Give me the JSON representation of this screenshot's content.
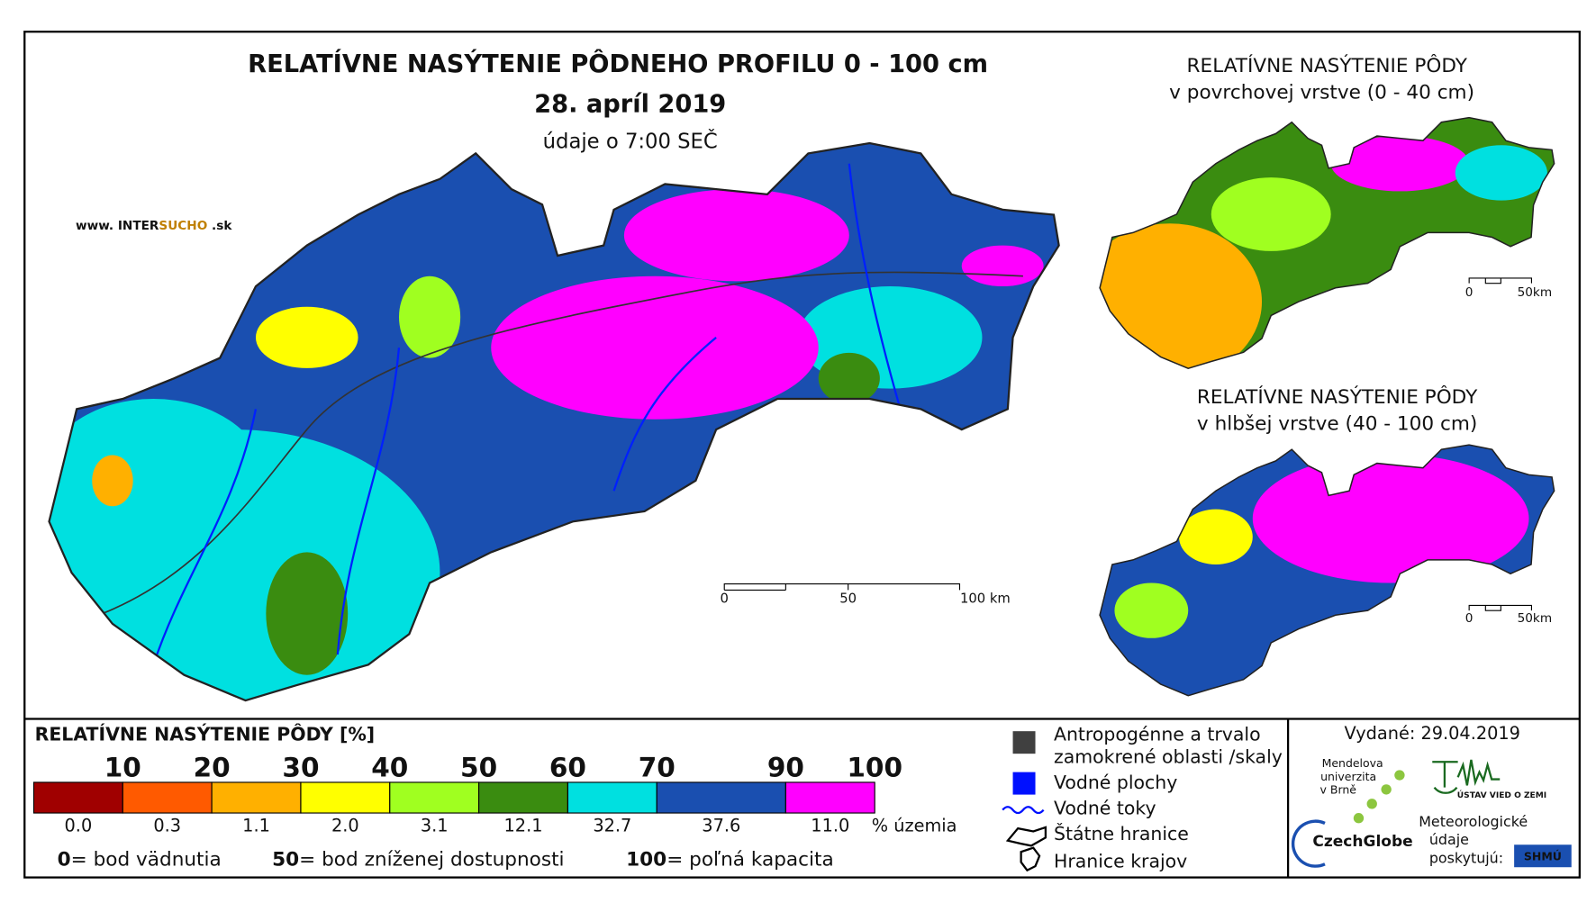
{
  "header": {
    "title": "RELATÍVNE NASÝTENIE PÔDNEHO PROFILU 0 - 100 cm",
    "date": "28. apríl 2019",
    "time_note": "údaje o 7:00 SEČ",
    "website": {
      "prefix": "www. INTER",
      "highlight": "SUCHO",
      "suffix": ".sk"
    }
  },
  "insets": [
    {
      "title": [
        "RELATÍVNE NASÝTENIE PÔDY",
        "v povrchovej vrstve (0 - 40 cm)"
      ],
      "scale": [
        "0",
        "50km"
      ]
    },
    {
      "title": [
        "RELATÍVNE NASÝTENIE PÔDY",
        "v hlbšej vrstve (40 - 100 cm)"
      ],
      "scale": [
        "0",
        "50km"
      ]
    }
  ],
  "main_scale": [
    "0",
    "50",
    "100 km"
  ],
  "legend": {
    "title": "RELATÍVNE NASÝTENIE PÔDY [%]",
    "thresholds": [
      "10",
      "20",
      "30",
      "40",
      "50",
      "60",
      "70",
      "90",
      "100"
    ],
    "colors": [
      "#a00000",
      "#ff5a00",
      "#ffb000",
      "#ffff00",
      "#a0ff20",
      "#3a8c10",
      "#00e0e0",
      "#1a4fb0",
      "#ff00ff"
    ],
    "shares": [
      "0.0",
      "0.3",
      "1.1",
      "2.0",
      "3.1",
      "12.1",
      "32.7",
      "37.6",
      "11.0"
    ],
    "share_unit": "% územia",
    "notes": [
      {
        "value": "0",
        "label": "= bod vädnutia"
      },
      {
        "value": "50",
        "label": "= bod zníženej dostupnosti"
      },
      {
        "value": "100",
        "label": "= poľná kapacita"
      }
    ]
  },
  "symbols": [
    "Antropogénne a trvalo",
    "zamokrené oblasti /skaly",
    "Vodné plochy",
    "Vodné toky",
    "Štátne hranice",
    "Hranice krajov"
  ],
  "footer": {
    "issued": "Vydané: 29.04.2019",
    "mendel": [
      "Mendelova",
      "univerzita",
      "v Brně"
    ],
    "czechglobe": "CzechGlobe",
    "uvz": "ÚSTAV VIED O ZEMI",
    "provider": [
      "Meteorologické",
      "údaje",
      "poskytujú:"
    ],
    "shmu": "SHMÚ"
  }
}
